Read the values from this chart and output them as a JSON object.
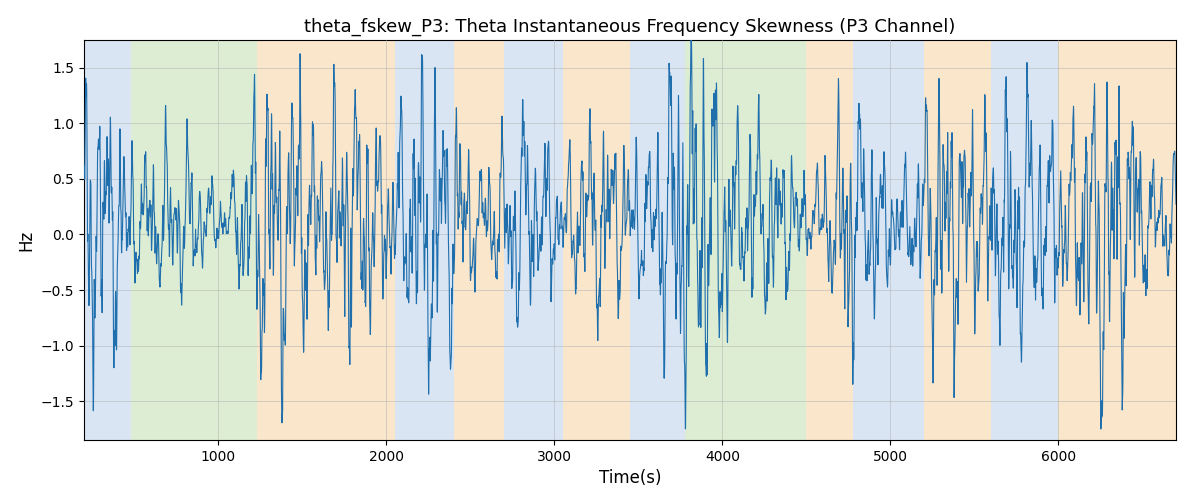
{
  "title": "theta_fskew_P3: Theta Instantaneous Frequency Skewness (P3 Channel)",
  "xlabel": "Time(s)",
  "ylabel": "Hz",
  "xlim": [
    200,
    6700
  ],
  "ylim": [
    -1.85,
    1.75
  ],
  "line_color": "#1f6fad",
  "line_width": 0.8,
  "background_bands": [
    {
      "xmin": 200,
      "xmax": 480,
      "color": "#aec6e8",
      "alpha": 0.45
    },
    {
      "xmin": 480,
      "xmax": 1230,
      "color": "#b5d9a0",
      "alpha": 0.45
    },
    {
      "xmin": 1230,
      "xmax": 2050,
      "color": "#f5c98a",
      "alpha": 0.45
    },
    {
      "xmin": 2050,
      "xmax": 2400,
      "color": "#aec6e8",
      "alpha": 0.45
    },
    {
      "xmin": 2400,
      "xmax": 2700,
      "color": "#f5c98a",
      "alpha": 0.45
    },
    {
      "xmin": 2700,
      "xmax": 3050,
      "color": "#aec6e8",
      "alpha": 0.45
    },
    {
      "xmin": 3050,
      "xmax": 3450,
      "color": "#f5c98a",
      "alpha": 0.45
    },
    {
      "xmin": 3450,
      "xmax": 3780,
      "color": "#aec6e8",
      "alpha": 0.45
    },
    {
      "xmin": 3780,
      "xmax": 4500,
      "color": "#b5d9a0",
      "alpha": 0.45
    },
    {
      "xmin": 4500,
      "xmax": 4780,
      "color": "#f5c98a",
      "alpha": 0.45
    },
    {
      "xmin": 4780,
      "xmax": 5200,
      "color": "#aec6e8",
      "alpha": 0.45
    },
    {
      "xmin": 5200,
      "xmax": 5600,
      "color": "#f5c98a",
      "alpha": 0.45
    },
    {
      "xmin": 5600,
      "xmax": 6000,
      "color": "#aec6e8",
      "alpha": 0.45
    },
    {
      "xmin": 6000,
      "xmax": 6700,
      "color": "#f5c98a",
      "alpha": 0.45
    }
  ],
  "xticks": [
    1000,
    2000,
    3000,
    4000,
    5000,
    6000
  ],
  "yticks": [
    -1.5,
    -1.0,
    -0.5,
    0.0,
    0.5,
    1.0,
    1.5
  ],
  "grid_color": "#b0b0b0",
  "grid_alpha": 0.7,
  "grid_linewidth": 0.5,
  "seed": 12345,
  "n_points": 6500
}
